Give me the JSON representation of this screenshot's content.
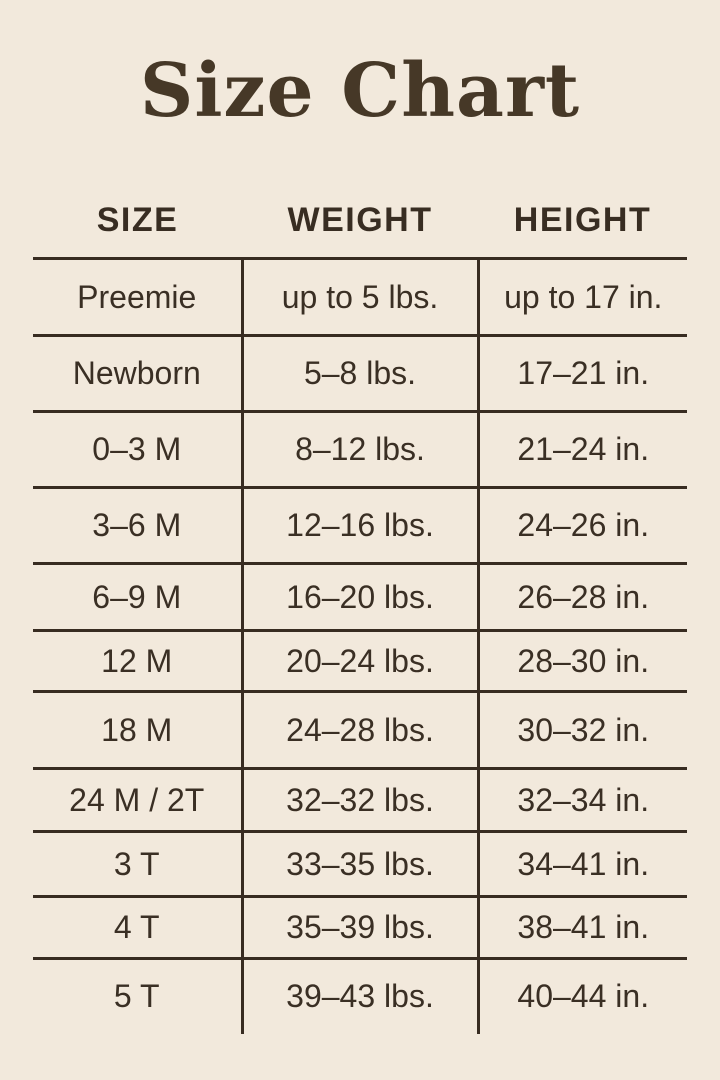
{
  "title": "Size Chart",
  "colors": {
    "background": "#f2e9dc",
    "line": "#382c21",
    "text": "#3a2f24",
    "title": "#463827"
  },
  "chart_data": {
    "type": "table",
    "title": "Size Chart",
    "columns": [
      "SIZE",
      "WEIGHT",
      "HEIGHT"
    ],
    "rows": [
      [
        "Preemie",
        "up to 5 lbs.",
        "up to 17 in."
      ],
      [
        "Newborn",
        "5–8 lbs.",
        "17–21 in."
      ],
      [
        "0–3 M",
        "8–12 lbs.",
        "21–24 in."
      ],
      [
        "3–6 M",
        "12–16 lbs.",
        "24–26 in."
      ],
      [
        "6–9 M",
        "16–20 lbs.",
        "26–28 in."
      ],
      [
        "12 M",
        "20–24 lbs.",
        "28–30 in."
      ],
      [
        "18 M",
        "24–28 lbs.",
        "30–32 in."
      ],
      [
        "24 M / 2T",
        "32–32 lbs.",
        "32–34 in."
      ],
      [
        "3 T",
        "33–35 lbs.",
        "34–41 in."
      ],
      [
        "4 T",
        "35–39 lbs.",
        "38–41 in."
      ],
      [
        "5 T",
        "39–43 lbs.",
        "40–44 in."
      ]
    ]
  }
}
